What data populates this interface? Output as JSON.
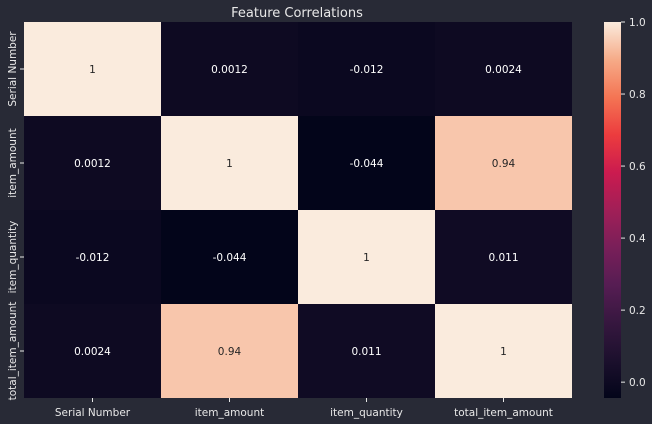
{
  "chart_data": {
    "type": "heatmap",
    "title": "Feature Correlations",
    "x_labels": [
      "Serial Number",
      "item_amount",
      "item_quantity",
      "total_item_amount"
    ],
    "y_labels": [
      "Serial Number",
      "item_amount",
      "item_quantity",
      "total_item_amount"
    ],
    "values": [
      [
        1,
        0.0012,
        -0.012,
        0.0024
      ],
      [
        0.0012,
        1,
        -0.044,
        0.94
      ],
      [
        -0.012,
        -0.044,
        1,
        0.011
      ],
      [
        0.0024,
        0.94,
        0.011,
        1
      ]
    ],
    "annotations": [
      [
        "1",
        "0.0012",
        "-0.012",
        "0.0024"
      ],
      [
        "0.0012",
        "1",
        "-0.044",
        "0.94"
      ],
      [
        "-0.012",
        "-0.044",
        "1",
        "0.011"
      ],
      [
        "0.0024",
        "0.94",
        "0.011",
        "1"
      ]
    ],
    "colorbar": {
      "min": -0.044,
      "max": 1,
      "ticks": [
        0.0,
        0.2,
        0.4,
        0.6,
        0.8,
        1.0
      ],
      "tick_labels": [
        "0.0",
        "0.2",
        "0.4",
        "0.6",
        "0.8",
        "1.0"
      ],
      "colormap": "rocket"
    },
    "colors": {
      "background": "#282a36",
      "text_light": "#ffffff",
      "text_dark": "#262626",
      "axis_text": "#e8e8e8"
    }
  }
}
